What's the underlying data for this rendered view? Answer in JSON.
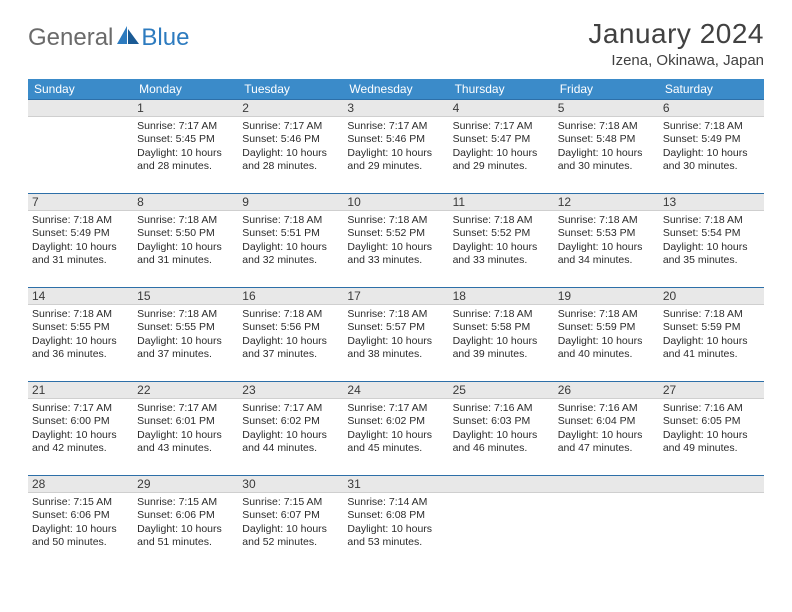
{
  "logo": {
    "text1": "General",
    "text2": "Blue"
  },
  "title": "January 2024",
  "location": "Izena, Okinawa, Japan",
  "colors": {
    "header_bg": "#3b8bc9",
    "header_text": "#ffffff",
    "daybar_bg": "#e8e8e8",
    "daybar_border_top": "#2d6fa8",
    "text": "#2b2b2b",
    "title_text": "#414141",
    "logo_gray": "#6a6a6a",
    "logo_blue": "#2d7bbf"
  },
  "day_names": [
    "Sunday",
    "Monday",
    "Tuesday",
    "Wednesday",
    "Thursday",
    "Friday",
    "Saturday"
  ],
  "weeks": [
    [
      null,
      {
        "n": "1",
        "sr": "7:17 AM",
        "ss": "5:45 PM",
        "dl": "10 hours and 28 minutes."
      },
      {
        "n": "2",
        "sr": "7:17 AM",
        "ss": "5:46 PM",
        "dl": "10 hours and 28 minutes."
      },
      {
        "n": "3",
        "sr": "7:17 AM",
        "ss": "5:46 PM",
        "dl": "10 hours and 29 minutes."
      },
      {
        "n": "4",
        "sr": "7:17 AM",
        "ss": "5:47 PM",
        "dl": "10 hours and 29 minutes."
      },
      {
        "n": "5",
        "sr": "7:18 AM",
        "ss": "5:48 PM",
        "dl": "10 hours and 30 minutes."
      },
      {
        "n": "6",
        "sr": "7:18 AM",
        "ss": "5:49 PM",
        "dl": "10 hours and 30 minutes."
      }
    ],
    [
      {
        "n": "7",
        "sr": "7:18 AM",
        "ss": "5:49 PM",
        "dl": "10 hours and 31 minutes."
      },
      {
        "n": "8",
        "sr": "7:18 AM",
        "ss": "5:50 PM",
        "dl": "10 hours and 31 minutes."
      },
      {
        "n": "9",
        "sr": "7:18 AM",
        "ss": "5:51 PM",
        "dl": "10 hours and 32 minutes."
      },
      {
        "n": "10",
        "sr": "7:18 AM",
        "ss": "5:52 PM",
        "dl": "10 hours and 33 minutes."
      },
      {
        "n": "11",
        "sr": "7:18 AM",
        "ss": "5:52 PM",
        "dl": "10 hours and 33 minutes."
      },
      {
        "n": "12",
        "sr": "7:18 AM",
        "ss": "5:53 PM",
        "dl": "10 hours and 34 minutes."
      },
      {
        "n": "13",
        "sr": "7:18 AM",
        "ss": "5:54 PM",
        "dl": "10 hours and 35 minutes."
      }
    ],
    [
      {
        "n": "14",
        "sr": "7:18 AM",
        "ss": "5:55 PM",
        "dl": "10 hours and 36 minutes."
      },
      {
        "n": "15",
        "sr": "7:18 AM",
        "ss": "5:55 PM",
        "dl": "10 hours and 37 minutes."
      },
      {
        "n": "16",
        "sr": "7:18 AM",
        "ss": "5:56 PM",
        "dl": "10 hours and 37 minutes."
      },
      {
        "n": "17",
        "sr": "7:18 AM",
        "ss": "5:57 PM",
        "dl": "10 hours and 38 minutes."
      },
      {
        "n": "18",
        "sr": "7:18 AM",
        "ss": "5:58 PM",
        "dl": "10 hours and 39 minutes."
      },
      {
        "n": "19",
        "sr": "7:18 AM",
        "ss": "5:59 PM",
        "dl": "10 hours and 40 minutes."
      },
      {
        "n": "20",
        "sr": "7:18 AM",
        "ss": "5:59 PM",
        "dl": "10 hours and 41 minutes."
      }
    ],
    [
      {
        "n": "21",
        "sr": "7:17 AM",
        "ss": "6:00 PM",
        "dl": "10 hours and 42 minutes."
      },
      {
        "n": "22",
        "sr": "7:17 AM",
        "ss": "6:01 PM",
        "dl": "10 hours and 43 minutes."
      },
      {
        "n": "23",
        "sr": "7:17 AM",
        "ss": "6:02 PM",
        "dl": "10 hours and 44 minutes."
      },
      {
        "n": "24",
        "sr": "7:17 AM",
        "ss": "6:02 PM",
        "dl": "10 hours and 45 minutes."
      },
      {
        "n": "25",
        "sr": "7:16 AM",
        "ss": "6:03 PM",
        "dl": "10 hours and 46 minutes."
      },
      {
        "n": "26",
        "sr": "7:16 AM",
        "ss": "6:04 PM",
        "dl": "10 hours and 47 minutes."
      },
      {
        "n": "27",
        "sr": "7:16 AM",
        "ss": "6:05 PM",
        "dl": "10 hours and 49 minutes."
      }
    ],
    [
      {
        "n": "28",
        "sr": "7:15 AM",
        "ss": "6:06 PM",
        "dl": "10 hours and 50 minutes."
      },
      {
        "n": "29",
        "sr": "7:15 AM",
        "ss": "6:06 PM",
        "dl": "10 hours and 51 minutes."
      },
      {
        "n": "30",
        "sr": "7:15 AM",
        "ss": "6:07 PM",
        "dl": "10 hours and 52 minutes."
      },
      {
        "n": "31",
        "sr": "7:14 AM",
        "ss": "6:08 PM",
        "dl": "10 hours and 53 minutes."
      },
      null,
      null,
      null
    ]
  ],
  "labels": {
    "sunrise": "Sunrise:",
    "sunset": "Sunset:",
    "daylight": "Daylight:"
  }
}
